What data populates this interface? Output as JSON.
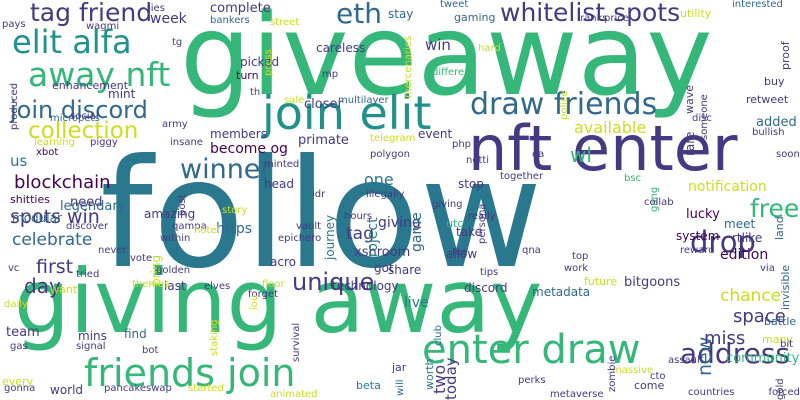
{
  "palette": {
    "green": "#35b779",
    "teal": "#2a788e",
    "blue": "#31688e",
    "cyan": "#21918c",
    "purple": "#443983",
    "dark": "#440154",
    "lime": "#b5de2b",
    "yellow": "#c8e020",
    "seafoam": "#6ece58",
    "indigo": "#3b528b"
  },
  "words": [
    {
      "t": "giveaway"
    },
    {
      "t": "follow"
    },
    {
      "t": "giving away"
    },
    {
      "t": "nft enter"
    },
    {
      "t": "join elit"
    },
    {
      "t": "away nft"
    },
    {
      "t": "elit alfa"
    },
    {
      "t": "tag friend"
    },
    {
      "t": "eth"
    },
    {
      "t": "whitelist spots"
    },
    {
      "t": "draw friends"
    },
    {
      "t": "join discord"
    },
    {
      "t": "collection"
    },
    {
      "t": "friends join"
    },
    {
      "t": "enter draw"
    },
    {
      "t": "winner"
    },
    {
      "t": "drop"
    },
    {
      "t": "free"
    },
    {
      "t": "address"
    },
    {
      "t": "unique"
    },
    {
      "t": "wl"
    },
    {
      "t": "win"
    },
    {
      "t": "blockchain"
    },
    {
      "t": "spots win"
    },
    {
      "t": "celebrate"
    },
    {
      "t": "first"
    },
    {
      "t": "day"
    },
    {
      "t": "tag"
    },
    {
      "t": "chance"
    },
    {
      "t": "space"
    },
    {
      "t": "new"
    },
    {
      "t": "miss"
    },
    {
      "t": "edition"
    },
    {
      "t": "available"
    },
    {
      "t": "become og"
    },
    {
      "t": "legendary"
    },
    {
      "t": "https"
    },
    {
      "t": "xshroom"
    },
    {
      "t": "giving"
    },
    {
      "t": "project"
    },
    {
      "t": "one"
    },
    {
      "t": "game"
    },
    {
      "t": "notification"
    },
    {
      "t": "lucky"
    },
    {
      "t": "two"
    },
    {
      "t": "today"
    },
    {
      "t": "live"
    },
    {
      "t": "community"
    },
    {
      "t": "added"
    },
    {
      "t": "week"
    },
    {
      "t": "complete"
    },
    {
      "t": "stay"
    },
    {
      "t": "gaming"
    },
    {
      "t": "retweet"
    },
    {
      "t": "picked"
    },
    {
      "t": "turn"
    },
    {
      "t": "closer"
    },
    {
      "t": "mint"
    },
    {
      "t": "enhancement"
    },
    {
      "t": "members"
    },
    {
      "t": "primate"
    },
    {
      "t": "event"
    },
    {
      "t": "us"
    },
    {
      "t": "shitties"
    },
    {
      "t": "modular"
    },
    {
      "t": "need"
    },
    {
      "t": "amazing"
    },
    {
      "t": "head"
    },
    {
      "t": "share"
    },
    {
      "t": "allow"
    },
    {
      "t": "take"
    },
    {
      "t": "stop"
    },
    {
      "t": "utc"
    },
    {
      "t": "system"
    },
    {
      "t": "rtlike"
    },
    {
      "t": "meet"
    },
    {
      "t": "land"
    },
    {
      "t": "bitgoons"
    },
    {
      "t": "future"
    },
    {
      "t": "metadata"
    },
    {
      "t": "discord"
    },
    {
      "t": "technology"
    },
    {
      "t": "got"
    },
    {
      "t": "acro"
    },
    {
      "t": "last"
    },
    {
      "t": "want"
    },
    {
      "t": "find"
    },
    {
      "t": "mins"
    },
    {
      "t": "team"
    },
    {
      "t": "world"
    },
    {
      "t": "every"
    },
    {
      "t": "beta"
    },
    {
      "t": "jar"
    },
    {
      "t": "come"
    },
    {
      "t": "battle"
    },
    {
      "t": "many"
    },
    {
      "t": "worth"
    },
    {
      "t": "bring"
    },
    {
      "t": "journey"
    },
    {
      "t": "wave"
    },
    {
      "t": "proof"
    },
    {
      "t": "rare"
    },
    {
      "t": "utility"
    },
    {
      "t": "buy"
    },
    {
      "t": "bullish"
    },
    {
      "t": "soon"
    },
    {
      "t": "invisible"
    },
    {
      "t": "via"
    },
    {
      "t": "bit"
    },
    {
      "t": "forced"
    },
    {
      "t": "countries"
    },
    {
      "t": "gold"
    },
    {
      "t": "assault"
    },
    {
      "t": "massive"
    },
    {
      "t": "metaverse"
    },
    {
      "t": "perks"
    },
    {
      "t": "zombie"
    },
    {
      "t": "work"
    },
    {
      "t": "top"
    },
    {
      "t": "qna"
    },
    {
      "t": "tips"
    },
    {
      "t": "fee"
    },
    {
      "t": "ea"
    },
    {
      "t": "php"
    },
    {
      "t": "polygon"
    },
    {
      "t": "telegram"
    },
    {
      "t": "giving"
    },
    {
      "t": "notti"
    },
    {
      "t": "together"
    },
    {
      "t": "bsc"
    },
    {
      "t": "gang"
    },
    {
      "t": "collab"
    },
    {
      "t": "reward"
    },
    {
      "t": "pays"
    },
    {
      "t": "wagmi"
    },
    {
      "t": "lies"
    },
    {
      "t": "tg"
    },
    {
      "t": "produced"
    },
    {
      "t": "micropets"
    },
    {
      "t": "bankers"
    },
    {
      "t": "street"
    },
    {
      "t": "press"
    },
    {
      "t": "careless"
    },
    {
      "t": "mp"
    },
    {
      "t": "mercenaries"
    },
    {
      "t": "tweet"
    },
    {
      "t": "hard"
    },
    {
      "t": "different"
    },
    {
      "t": "police"
    },
    {
      "t": "ranks"
    },
    {
      "t": "price"
    },
    {
      "t": "interested"
    },
    {
      "t": "someone"
    },
    {
      "t": "disc"
    },
    {
      "t": "cto"
    },
    {
      "t": "sale"
    },
    {
      "t": "multilayer"
    },
    {
      "t": "th"
    },
    {
      "t": "social"
    },
    {
      "t": "piggy"
    },
    {
      "t": "army"
    },
    {
      "t": "insane"
    },
    {
      "t": "learning"
    },
    {
      "t": "xbot"
    },
    {
      "t": "minted"
    },
    {
      "t": "post"
    },
    {
      "t": "idr"
    },
    {
      "t": "illegally"
    },
    {
      "t": "hours"
    },
    {
      "t": "persona"
    },
    {
      "t": "really"
    },
    {
      "t": "vault"
    },
    {
      "t": "epichero"
    },
    {
      "t": "qampa"
    },
    {
      "t": "story"
    },
    {
      "t": "hotel"
    },
    {
      "t": "within"
    },
    {
      "t": "discover"
    },
    {
      "t": "never"
    },
    {
      "t": "vc"
    },
    {
      "t": "vote"
    },
    {
      "t": "tried"
    },
    {
      "t": "golden"
    },
    {
      "t": "themes"
    },
    {
      "t": "elves"
    },
    {
      "t": "floor"
    },
    {
      "t": "forget"
    },
    {
      "t": "iou"
    },
    {
      "t": "staking"
    },
    {
      "t": "survival"
    },
    {
      "t": "signal"
    },
    {
      "t": "gas"
    },
    {
      "t": "bot"
    },
    {
      "t": "gonna"
    },
    {
      "t": "pancakeswap"
    },
    {
      "t": "started"
    },
    {
      "t": "animated"
    },
    {
      "t": "club"
    },
    {
      "t": "daily"
    },
    {
      "t": "will"
    }
  ]
}
